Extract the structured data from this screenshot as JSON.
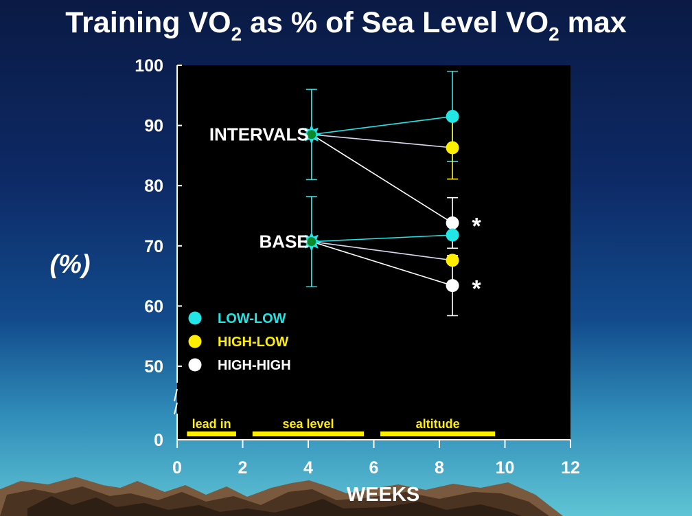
{
  "title": {
    "part1": "Training VO",
    "sub1": "2",
    "part2": " as % of Sea Level VO",
    "sub2": "2",
    "part3": " max"
  },
  "chart_data": {
    "type": "line",
    "title": "Training VO2 as % of Sea Level VO2 max",
    "xlabel": "WEEKS",
    "ylabel": "(%)",
    "xlim": [
      0,
      12
    ],
    "ylim": [
      0,
      100
    ],
    "y_axis_break": true,
    "x_ticks": [
      0,
      2,
      4,
      6,
      8,
      10,
      12
    ],
    "y_ticks": [
      0,
      50,
      60,
      70,
      80,
      90,
      100
    ],
    "colors": {
      "LOW-LOW": "#22e6e6",
      "HIGH-LOW": "#ffee00",
      "HIGH-HIGH": "#ffffff",
      "start_marker": "#0a8a2a",
      "plot_bg": "#000000",
      "phase_bar": "#ffee00"
    },
    "groups": [
      {
        "label": "INTERVALS",
        "start": {
          "x": 4.1,
          "y": 88.5,
          "error": 7.5
        },
        "series": [
          {
            "name": "LOW-LOW",
            "x": [
              4.1,
              8.4
            ],
            "y": [
              88.5,
              91.5
            ],
            "error_end": [
              null,
              7.5
            ]
          },
          {
            "name": "HIGH-LOW",
            "x": [
              4.1,
              8.4
            ],
            "y": [
              88.5,
              86.3
            ],
            "error_end": [
              null,
              5.2
            ]
          },
          {
            "name": "HIGH-HIGH",
            "x": [
              4.1,
              8.4
            ],
            "y": [
              88.5,
              73.8
            ],
            "error_end": [
              null,
              4.2
            ],
            "annotation": "*"
          }
        ]
      },
      {
        "label": "BASE",
        "start": {
          "x": 4.1,
          "y": 70.7,
          "error": 7.5
        },
        "series": [
          {
            "name": "LOW-LOW",
            "x": [
              4.1,
              8.4
            ],
            "y": [
              70.7,
              71.8
            ]
          },
          {
            "name": "HIGH-LOW",
            "x": [
              4.1,
              8.4
            ],
            "y": [
              70.7,
              67.6
            ]
          },
          {
            "name": "HIGH-HIGH",
            "x": [
              4.1,
              8.4
            ],
            "y": [
              70.7,
              63.4
            ],
            "error_end": [
              null,
              5.0
            ],
            "annotation": "*"
          }
        ]
      }
    ],
    "legend": {
      "placement": "bottom-left",
      "entries": [
        "LOW-LOW",
        "HIGH-LOW",
        "HIGH-HIGH"
      ]
    },
    "phases": [
      {
        "label": "lead in",
        "x": [
          0.3,
          1.8
        ]
      },
      {
        "label": "sea level",
        "x": [
          2.3,
          5.7
        ]
      },
      {
        "label": "altitude",
        "x": [
          6.2,
          9.7
        ]
      }
    ]
  }
}
